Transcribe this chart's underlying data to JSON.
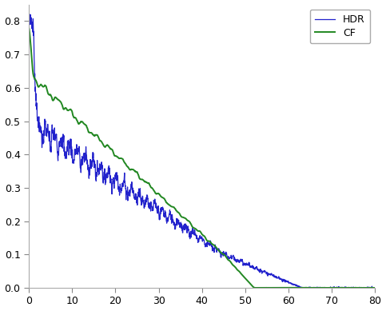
{
  "title": "",
  "xlabel": "",
  "ylabel": "",
  "xlim": [
    0,
    80
  ],
  "ylim": [
    0,
    0.85
  ],
  "xticks": [
    0,
    10,
    20,
    30,
    40,
    50,
    60,
    70,
    80
  ],
  "yticks": [
    0.0,
    0.1,
    0.2,
    0.3,
    0.4,
    0.5,
    0.6,
    0.7,
    0.8
  ],
  "hdr_color": "#2222cc",
  "cf_color": "#228822",
  "legend_labels": [
    "HDR",
    "CF"
  ],
  "background_color": "#ffffff",
  "figsize": [
    4.83,
    3.89
  ],
  "dpi": 100
}
